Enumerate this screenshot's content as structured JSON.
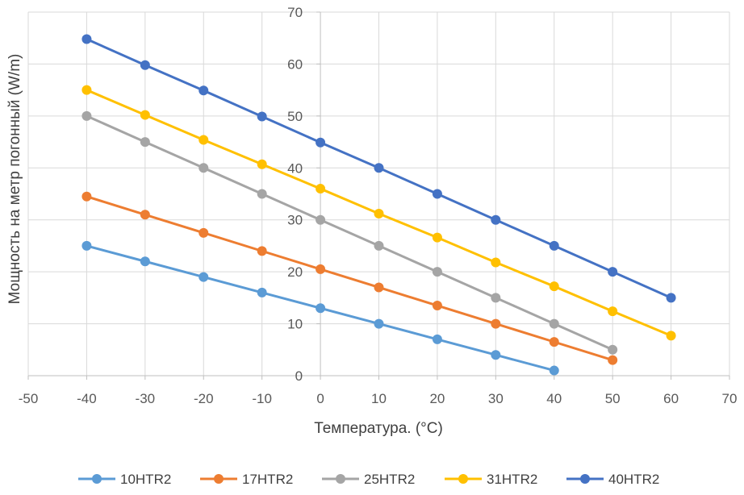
{
  "chart_data": {
    "type": "scatter",
    "title": "",
    "xlabel": "Температура. (°C)",
    "ylabel": "Мощность на метр погонный (W/m)",
    "xlim": [
      -50,
      70
    ],
    "ylim": [
      0,
      70
    ],
    "x_ticks": [
      -50,
      -40,
      -30,
      -20,
      -10,
      0,
      10,
      20,
      30,
      40,
      50,
      60,
      70
    ],
    "y_ticks": [
      0,
      10,
      20,
      30,
      40,
      50,
      60,
      70
    ],
    "grid": true,
    "legend_position": "bottom",
    "series": [
      {
        "name": "10HTR2",
        "color": "#5B9BD5",
        "x": [
          -40,
          -30,
          -20,
          -10,
          0,
          10,
          20,
          30,
          40
        ],
        "y": [
          25,
          22,
          19,
          16,
          13,
          10,
          7,
          4,
          1
        ]
      },
      {
        "name": "17HTR2",
        "color": "#ED7D31",
        "x": [
          -40,
          -30,
          -20,
          -10,
          0,
          10,
          20,
          30,
          40,
          50
        ],
        "y": [
          34.5,
          31,
          27.5,
          24,
          20.5,
          17,
          13.5,
          10,
          6.5,
          3
        ]
      },
      {
        "name": "25HTR2",
        "color": "#A5A5A5",
        "x": [
          -40,
          -30,
          -20,
          -10,
          0,
          10,
          20,
          30,
          40,
          50
        ],
        "y": [
          50,
          45,
          40,
          35,
          30,
          25,
          20,
          15,
          10,
          5
        ]
      },
      {
        "name": "31HTR2",
        "color": "#FFC000",
        "x": [
          -40,
          -30,
          -20,
          -10,
          0,
          10,
          20,
          30,
          40,
          50,
          60
        ],
        "y": [
          55,
          50.2,
          45.4,
          40.7,
          36,
          31.2,
          26.6,
          21.8,
          17.2,
          12.4,
          7.7
        ]
      },
      {
        "name": "40HTR2",
        "color": "#4472C4",
        "x": [
          -40,
          -30,
          -20,
          -10,
          0,
          10,
          20,
          30,
          40,
          50,
          60
        ],
        "y": [
          64.8,
          59.8,
          54.9,
          49.9,
          44.9,
          40,
          35,
          30,
          25,
          20,
          15
        ]
      }
    ]
  }
}
